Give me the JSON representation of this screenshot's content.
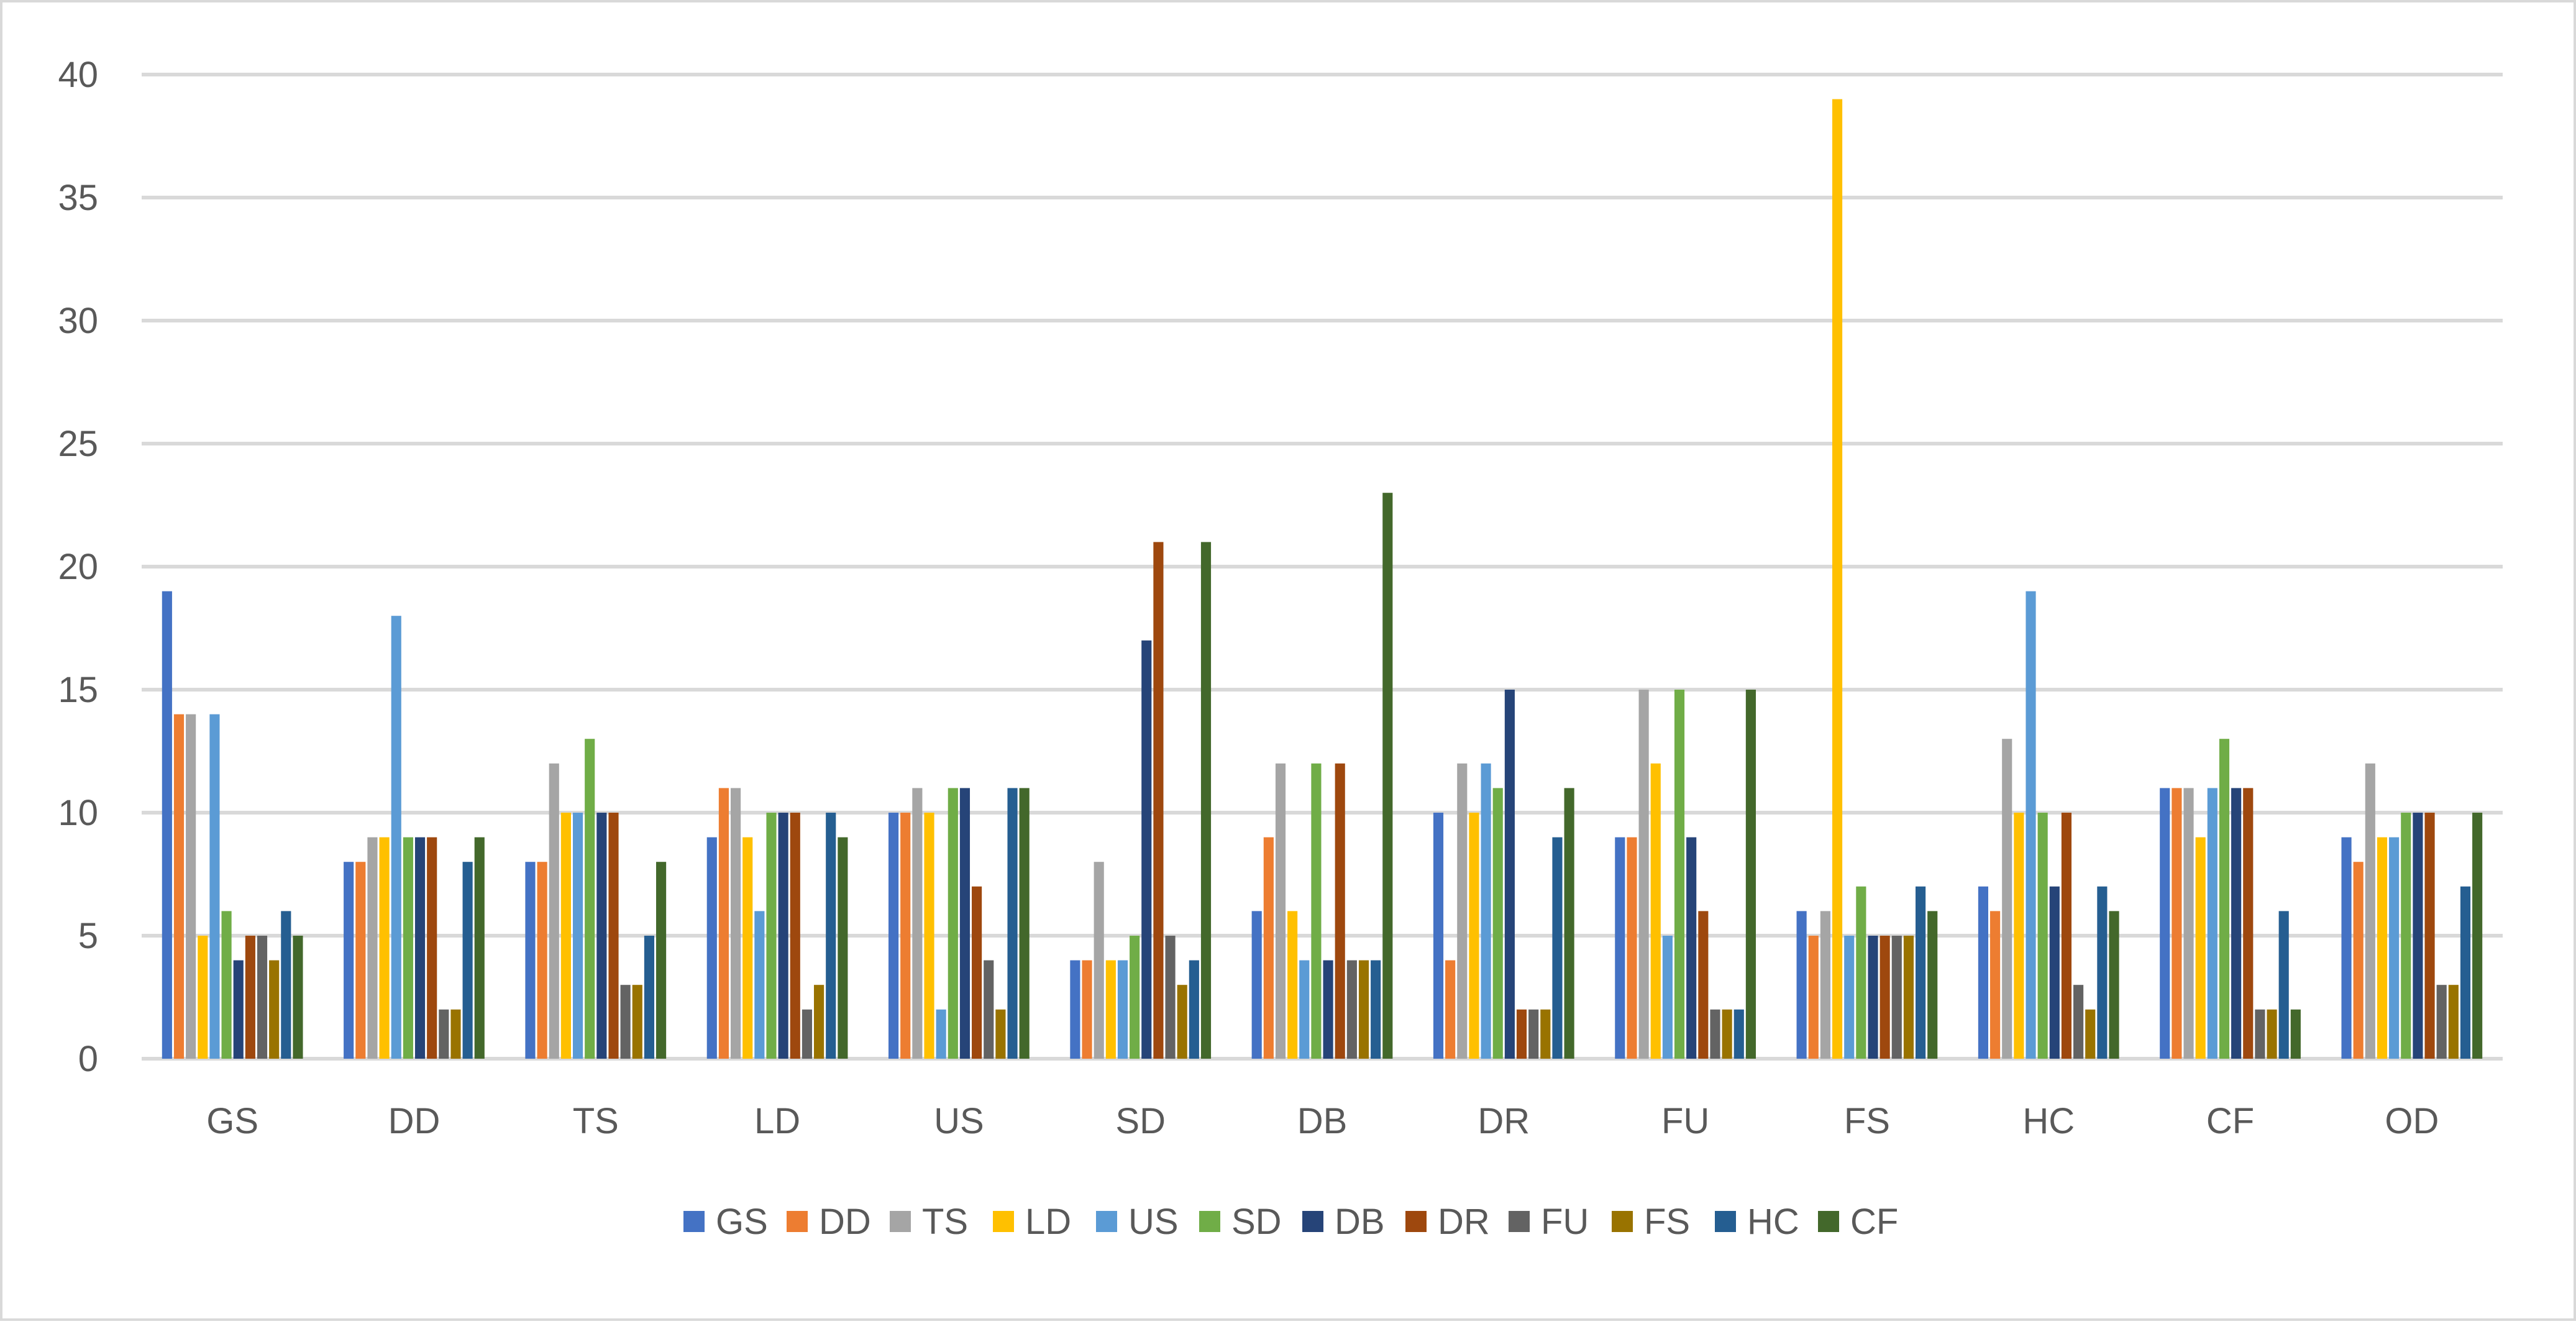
{
  "chart_data": {
    "type": "bar",
    "categories": [
      "GS",
      "DD",
      "TS",
      "LD",
      "US",
      "SD",
      "DB",
      "DR",
      "FU",
      "FS",
      "HC",
      "CF",
      "OD"
    ],
    "ylim": [
      0,
      40
    ],
    "yticks": [
      0,
      5,
      10,
      15,
      20,
      25,
      30,
      35,
      40
    ],
    "grid": true,
    "legend_position": "bottom",
    "title": "",
    "xlabel": "",
    "ylabel": "",
    "series": [
      {
        "name": "GS",
        "color": "#4472C4",
        "values": [
          19,
          8,
          8,
          9,
          10,
          4,
          6,
          10,
          9,
          6,
          7,
          11,
          9
        ]
      },
      {
        "name": "DD",
        "color": "#ED7D31",
        "values": [
          14,
          8,
          8,
          11,
          10,
          4,
          9,
          4,
          9,
          5,
          6,
          11,
          8
        ]
      },
      {
        "name": "TS",
        "color": "#A5A5A5",
        "values": [
          14,
          9,
          12,
          11,
          11,
          8,
          12,
          12,
          15,
          6,
          13,
          11,
          12
        ]
      },
      {
        "name": "LD",
        "color": "#FFC000",
        "values": [
          5,
          9,
          10,
          9,
          10,
          4,
          6,
          10,
          12,
          39,
          10,
          9,
          9
        ]
      },
      {
        "name": "US",
        "color": "#5B9BD5",
        "values": [
          14,
          18,
          10,
          6,
          2,
          4,
          4,
          12,
          5,
          5,
          19,
          11,
          9
        ]
      },
      {
        "name": "SD",
        "color": "#70AD47",
        "values": [
          6,
          9,
          13,
          10,
          11,
          5,
          12,
          11,
          15,
          7,
          10,
          13,
          10
        ]
      },
      {
        "name": "DB",
        "color": "#264478",
        "values": [
          4,
          9,
          10,
          10,
          11,
          17,
          4,
          15,
          9,
          5,
          7,
          11,
          10
        ]
      },
      {
        "name": "DR",
        "color": "#9E480E",
        "values": [
          5,
          9,
          10,
          10,
          7,
          21,
          12,
          2,
          6,
          5,
          10,
          11,
          10
        ]
      },
      {
        "name": "FU",
        "color": "#636363",
        "values": [
          5,
          2,
          3,
          2,
          4,
          5,
          4,
          2,
          2,
          5,
          3,
          2,
          3
        ]
      },
      {
        "name": "FS",
        "color": "#997300",
        "values": [
          4,
          2,
          3,
          3,
          2,
          3,
          4,
          2,
          2,
          5,
          2,
          2,
          3
        ]
      },
      {
        "name": "HC",
        "color": "#255E91",
        "values": [
          6,
          8,
          5,
          10,
          11,
          4,
          4,
          9,
          2,
          7,
          7,
          6,
          7
        ]
      },
      {
        "name": "CF",
        "color": "#43682B",
        "values": [
          5,
          9,
          8,
          9,
          11,
          21,
          23,
          11,
          15,
          6,
          6,
          2,
          10
        ]
      }
    ]
  }
}
